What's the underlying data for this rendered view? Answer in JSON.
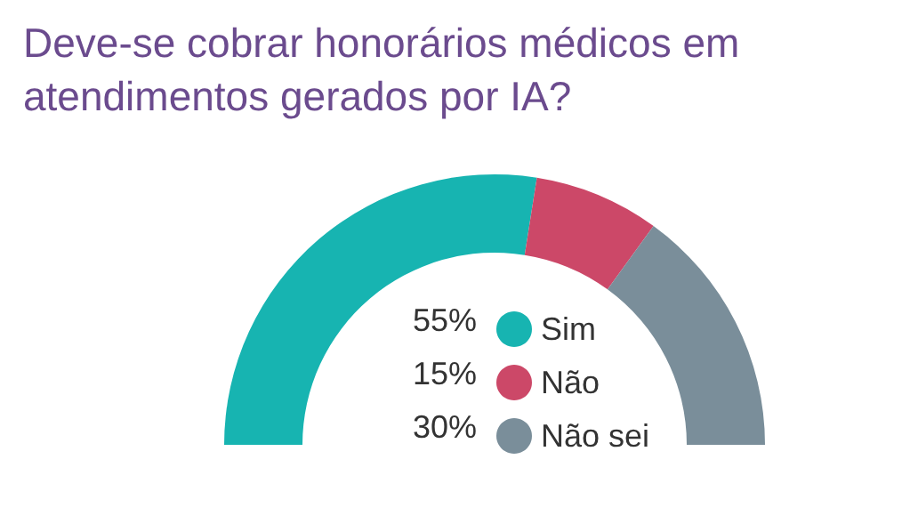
{
  "chart_data": {
    "type": "donut",
    "title": "Deve-se cobrar honorários médicos em atendimentos gerados por IA?",
    "categories": [
      "Sim",
      "Não",
      "Não sei"
    ],
    "values": [
      55,
      15,
      30
    ],
    "colors": [
      "#17b4b1",
      "#cc4868",
      "#7a8e9a"
    ],
    "value_labels": [
      "55%",
      "15%",
      "30%"
    ],
    "legend": "center"
  }
}
